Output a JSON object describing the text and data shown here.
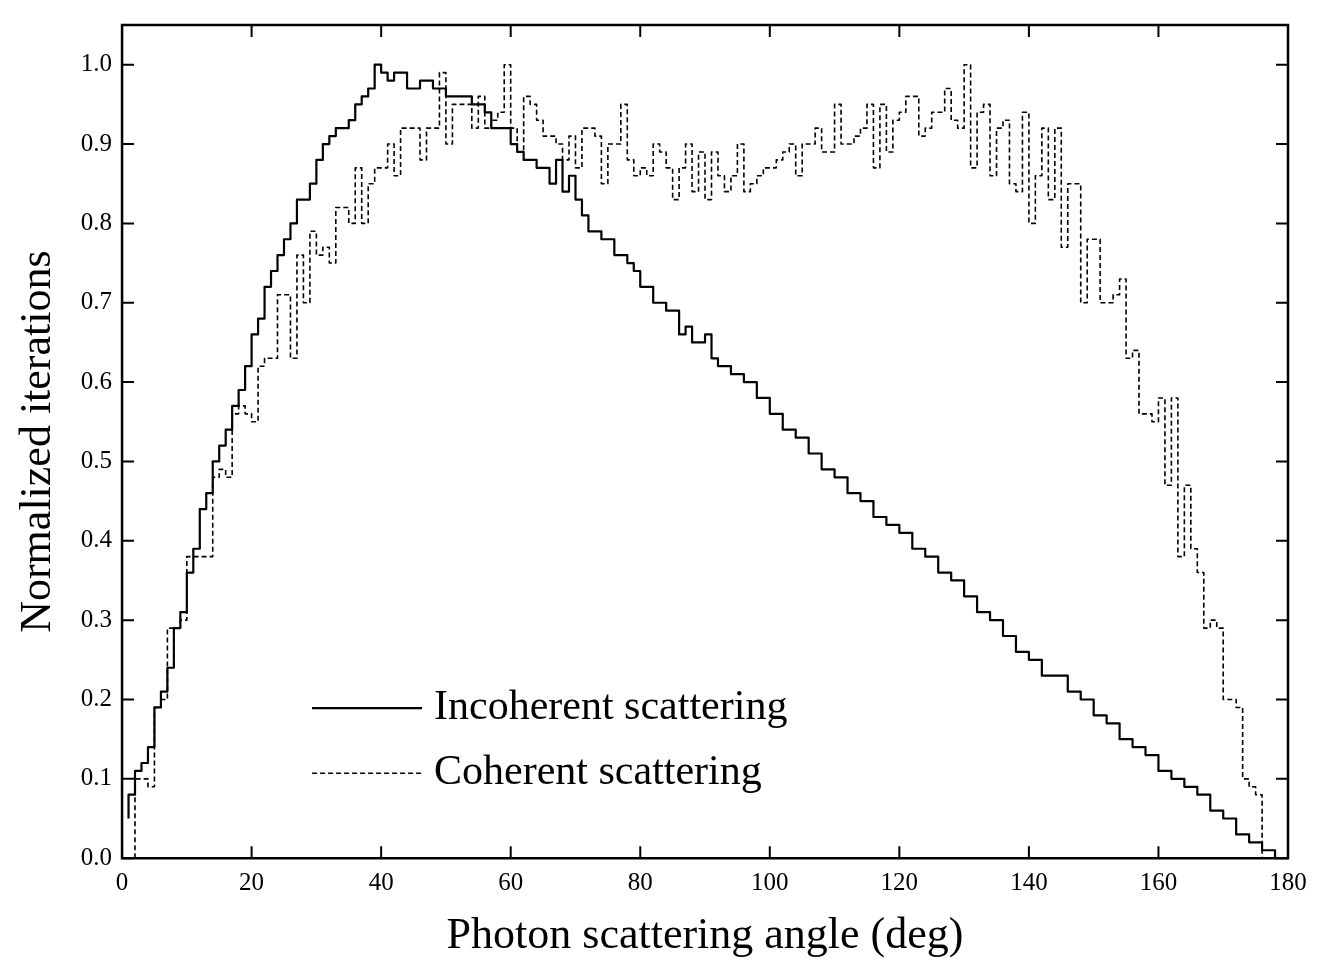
{
  "chart_data": {
    "type": "step",
    "xlabel": "Photon scattering angle (deg)",
    "ylabel": "Normalized iterations",
    "xlim": [
      0,
      180
    ],
    "xticks": [
      0,
      20,
      40,
      60,
      80,
      100,
      120,
      140,
      160,
      180
    ],
    "ylim": [
      0,
      1.05
    ],
    "yticks": [
      {
        "value": 0,
        "label": "0.0"
      },
      0.1,
      0.2,
      0.3,
      0.4,
      0.5,
      0.6,
      0.7,
      0.8,
      0.9,
      {
        "value": 1.0,
        "label": "1.0"
      }
    ],
    "grid": false,
    "legend": "bottom left",
    "marker": "none",
    "series": [
      {
        "name": "Incoherent scattering",
        "color": "#000000",
        "line_style": "solid",
        "x": [
          1,
          2,
          3,
          4,
          5,
          6,
          7,
          8,
          9,
          10,
          11,
          12,
          13,
          14,
          15,
          16,
          17,
          18,
          19,
          20,
          21,
          22,
          23,
          24,
          25,
          26,
          27,
          28,
          29,
          30,
          31,
          32,
          33,
          34,
          35,
          36,
          37,
          38,
          39,
          40,
          41,
          42,
          44,
          46,
          48,
          50,
          52,
          54,
          56,
          57,
          58,
          60,
          61,
          62,
          64,
          66,
          67,
          68,
          69,
          70,
          71,
          72,
          74,
          75,
          76,
          77,
          78,
          79,
          80,
          82,
          84,
          86,
          87,
          88,
          90,
          91,
          92,
          94,
          96,
          98,
          100,
          102,
          104,
          106,
          108,
          110,
          112,
          114,
          116,
          118,
          120,
          122,
          124,
          126,
          128,
          130,
          132,
          134,
          136,
          138,
          140,
          142,
          144,
          146,
          148,
          150,
          152,
          154,
          156,
          158,
          160,
          162,
          164,
          166,
          168,
          170,
          172,
          174,
          176,
          178,
          179
        ],
        "values": [
          0.05,
          0.08,
          0.11,
          0.12,
          0.14,
          0.19,
          0.21,
          0.24,
          0.29,
          0.31,
          0.36,
          0.39,
          0.44,
          0.46,
          0.5,
          0.52,
          0.54,
          0.57,
          0.59,
          0.62,
          0.66,
          0.68,
          0.72,
          0.74,
          0.76,
          0.78,
          0.8,
          0.83,
          0.83,
          0.85,
          0.88,
          0.9,
          0.91,
          0.92,
          0.92,
          0.93,
          0.95,
          0.96,
          0.97,
          1.0,
          0.99,
          0.98,
          0.99,
          0.97,
          0.98,
          0.97,
          0.96,
          0.96,
          0.95,
          0.94,
          0.92,
          0.92,
          0.9,
          0.89,
          0.88,
          0.87,
          0.85,
          0.88,
          0.84,
          0.86,
          0.83,
          0.81,
          0.79,
          0.78,
          0.78,
          0.76,
          0.76,
          0.75,
          0.74,
          0.72,
          0.7,
          0.69,
          0.66,
          0.67,
          0.65,
          0.66,
          0.63,
          0.62,
          0.61,
          0.6,
          0.58,
          0.56,
          0.54,
          0.53,
          0.51,
          0.49,
          0.48,
          0.46,
          0.45,
          0.43,
          0.42,
          0.41,
          0.39,
          0.38,
          0.36,
          0.35,
          0.33,
          0.31,
          0.3,
          0.28,
          0.26,
          0.25,
          0.23,
          0.23,
          0.21,
          0.2,
          0.18,
          0.17,
          0.15,
          0.14,
          0.13,
          0.11,
          0.1,
          0.09,
          0.08,
          0.06,
          0.05,
          0.03,
          0.02,
          0.01,
          0.0
        ]
      },
      {
        "name": "Coherent scattering",
        "color": "#000000",
        "line_style": "dashed",
        "x": [
          2,
          3,
          4,
          5,
          6,
          7,
          8,
          9,
          10,
          12,
          14,
          15,
          16,
          17,
          18,
          19,
          20,
          21,
          22,
          24,
          25,
          26,
          27,
          28,
          29,
          30,
          31,
          32,
          33,
          34,
          35,
          36,
          37,
          38,
          39,
          40,
          41,
          42,
          43,
          44,
          46,
          47,
          48,
          49,
          50,
          51,
          52,
          54,
          55,
          56,
          57,
          58,
          59,
          60,
          61,
          62,
          63,
          64,
          65,
          66,
          67,
          68,
          69,
          70,
          71,
          72,
          73,
          74,
          75,
          76,
          77,
          78,
          79,
          80,
          81,
          82,
          83,
          84,
          85,
          86,
          87,
          88,
          89,
          90,
          91,
          92,
          93,
          94,
          95,
          96,
          97,
          98,
          99,
          100,
          101,
          102,
          103,
          104,
          105,
          106,
          107,
          108,
          109,
          110,
          111,
          112,
          113,
          114,
          115,
          116,
          117,
          118,
          119,
          120,
          121,
          122,
          123,
          124,
          125,
          126,
          127,
          128,
          129,
          130,
          131,
          132,
          133,
          134,
          135,
          136,
          137,
          138,
          139,
          140,
          141,
          142,
          143,
          144,
          145,
          146,
          147,
          148,
          149,
          150,
          151,
          152,
          153,
          154,
          155,
          156,
          157,
          158,
          159,
          160,
          161,
          162,
          163,
          164,
          165,
          166,
          167,
          168,
          169,
          170,
          171,
          172,
          173,
          174,
          175,
          176,
          177
        ],
        "values": [
          0.0,
          0.1,
          0.1,
          0.09,
          0.19,
          0.2,
          0.29,
          0.29,
          0.3,
          0.38,
          0.38,
          0.48,
          0.49,
          0.48,
          0.56,
          0.57,
          0.56,
          0.55,
          0.62,
          0.63,
          0.71,
          0.71,
          0.63,
          0.76,
          0.7,
          0.79,
          0.76,
          0.77,
          0.75,
          0.82,
          0.82,
          0.8,
          0.87,
          0.8,
          0.85,
          0.87,
          0.87,
          0.9,
          0.86,
          0.92,
          0.92,
          0.88,
          0.92,
          0.92,
          0.99,
          0.9,
          0.95,
          0.95,
          0.92,
          0.96,
          0.92,
          0.93,
          0.94,
          1.0,
          0.92,
          0.89,
          0.96,
          0.95,
          0.93,
          0.91,
          0.91,
          0.9,
          0.88,
          0.91,
          0.87,
          0.92,
          0.92,
          0.91,
          0.85,
          0.9,
          0.9,
          0.95,
          0.88,
          0.86,
          0.87,
          0.86,
          0.9,
          0.89,
          0.87,
          0.83,
          0.87,
          0.9,
          0.84,
          0.89,
          0.83,
          0.89,
          0.86,
          0.84,
          0.86,
          0.9,
          0.84,
          0.85,
          0.86,
          0.87,
          0.87,
          0.88,
          0.89,
          0.9,
          0.86,
          0.9,
          0.9,
          0.92,
          0.89,
          0.89,
          0.95,
          0.9,
          0.9,
          0.91,
          0.92,
          0.95,
          0.87,
          0.95,
          0.89,
          0.93,
          0.94,
          0.96,
          0.96,
          0.91,
          0.92,
          0.94,
          0.94,
          0.97,
          0.93,
          0.92,
          1.0,
          0.87,
          0.94,
          0.95,
          0.86,
          0.92,
          0.93,
          0.85,
          0.84,
          0.94,
          0.8,
          0.86,
          0.92,
          0.83,
          0.92,
          0.77,
          0.85,
          0.85,
          0.7,
          0.78,
          0.78,
          0.7,
          0.7,
          0.71,
          0.73,
          0.63,
          0.64,
          0.56,
          0.56,
          0.55,
          0.58,
          0.47,
          0.58,
          0.38,
          0.47,
          0.39,
          0.36,
          0.29,
          0.3,
          0.29,
          0.2,
          0.2,
          0.19,
          0.1,
          0.09,
          0.08,
          0.0
        ]
      }
    ]
  }
}
